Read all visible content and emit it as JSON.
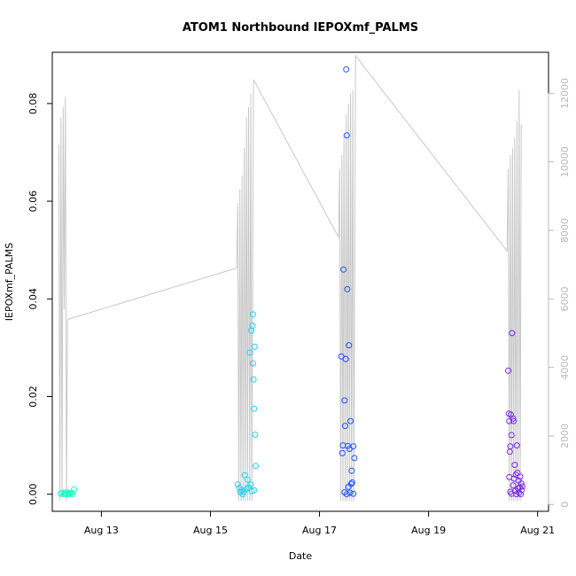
{
  "chart_data": {
    "type": "scatter",
    "title": "ATOM1 Northbound IEPOXmf_PALMS",
    "xlabel": "Date",
    "ylabel": "IEPOXmf_PALMS",
    "x_ticks": [
      "Aug 13",
      "Aug 15",
      "Aug 17",
      "Aug 19",
      "Aug 21"
    ],
    "x_tick_values": [
      13,
      15,
      17,
      19,
      21
    ],
    "y_ticks": [
      "0.00",
      "0.02",
      "0.04",
      "0.06",
      "0.08"
    ],
    "y_tick_values": [
      0,
      0.02,
      0.04,
      0.06,
      0.08
    ],
    "y2_ticks": [
      "0",
      "2000",
      "4000",
      "6000",
      "8000",
      "10000",
      "12000"
    ],
    "y2_tick_values": [
      0,
      2000,
      4000,
      6000,
      8000,
      10000,
      12000
    ],
    "xlim": [
      12.1,
      21.2
    ],
    "ylim": [
      -0.0035,
      0.0905
    ],
    "y2lim": [
      -200,
      13200
    ],
    "colors": {
      "axis": "#000000",
      "secondary_axis": "#b8b8b8",
      "altitude_line": "#c8c8c8"
    },
    "series": [
      {
        "role": "points",
        "values": [
          {
            "x": 12.25,
            "y": 0.0001,
            "color": "#19ffc8"
          },
          {
            "x": 12.28,
            "y": 0.0003,
            "color": "#19ffc8"
          },
          {
            "x": 12.31,
            "y": 0.0,
            "color": "#19ffc8"
          },
          {
            "x": 12.33,
            "y": 0.0002,
            "color": "#19ffc8"
          },
          {
            "x": 12.35,
            "y": 0.0001,
            "color": "#19ffc8"
          },
          {
            "x": 12.37,
            "y": 0.0004,
            "color": "#19ffc8"
          },
          {
            "x": 12.39,
            "y": 0.0,
            "color": "#19ffc8"
          },
          {
            "x": 12.41,
            "y": 0.0002,
            "color": "#19ffc8"
          },
          {
            "x": 12.43,
            "y": 0.0001,
            "color": "#19ffc8"
          },
          {
            "x": 12.45,
            "y": 0.0003,
            "color": "#19ffc8"
          },
          {
            "x": 12.47,
            "y": 0.0,
            "color": "#19ffc8"
          },
          {
            "x": 12.5,
            "y": 0.001,
            "color": "#19ffc8"
          },
          {
            "x": 15.5,
            "y": 0.002,
            "color": "#22d0f0"
          },
          {
            "x": 15.53,
            "y": 0.0013,
            "color": "#22d0f0"
          },
          {
            "x": 15.55,
            "y": 0.0004,
            "color": "#22d0f0"
          },
          {
            "x": 15.57,
            "y": 0.0008,
            "color": "#22d0f0"
          },
          {
            "x": 15.59,
            "y": 0.0,
            "color": "#22d0f0"
          },
          {
            "x": 15.61,
            "y": 0.0005,
            "color": "#22d0f0"
          },
          {
            "x": 15.63,
            "y": 0.0039,
            "color": "#22d0f0"
          },
          {
            "x": 15.66,
            "y": 0.0011,
            "color": "#22d0f0"
          },
          {
            "x": 15.68,
            "y": 0.003,
            "color": "#22d0f0"
          },
          {
            "x": 15.7,
            "y": 0.0014,
            "color": "#22d0f0"
          },
          {
            "x": 15.72,
            "y": 0.029,
            "color": "#22d0f0"
          },
          {
            "x": 15.74,
            "y": 0.002,
            "color": "#22d0f0"
          },
          {
            "x": 15.75,
            "y": 0.0335,
            "color": "#22d0f0"
          },
          {
            "x": 15.77,
            "y": 0.0345,
            "color": "#22d0f0"
          },
          {
            "x": 15.78,
            "y": 0.0368,
            "color": "#22d0f0"
          },
          {
            "x": 15.78,
            "y": 0.0268,
            "color": "#22d0f0"
          },
          {
            "x": 15.79,
            "y": 0.0235,
            "color": "#22d0f0"
          },
          {
            "x": 15.8,
            "y": 0.0175,
            "color": "#22d0f0"
          },
          {
            "x": 15.81,
            "y": 0.0302,
            "color": "#22d0f0"
          },
          {
            "x": 15.82,
            "y": 0.0122,
            "color": "#22d0f0"
          },
          {
            "x": 15.83,
            "y": 0.0058,
            "color": "#22d0f0"
          },
          {
            "x": 15.8,
            "y": 0.0008,
            "color": "#22d0f0"
          },
          {
            "x": 15.76,
            "y": 0.0006,
            "color": "#22d0f0"
          },
          {
            "x": 17.4,
            "y": 0.0282,
            "color": "#1e50ff"
          },
          {
            "x": 17.42,
            "y": 0.0084,
            "color": "#1e50ff"
          },
          {
            "x": 17.43,
            "y": 0.01,
            "color": "#1e50ff"
          },
          {
            "x": 17.44,
            "y": 0.046,
            "color": "#1e50ff"
          },
          {
            "x": 17.46,
            "y": 0.0192,
            "color": "#1e50ff"
          },
          {
            "x": 17.47,
            "y": 0.014,
            "color": "#1e50ff"
          },
          {
            "x": 17.48,
            "y": 0.0277,
            "color": "#1e50ff"
          },
          {
            "x": 17.49,
            "y": 0.087,
            "color": "#1e50ff"
          },
          {
            "x": 17.5,
            "y": 0.0735,
            "color": "#1e50ff"
          },
          {
            "x": 17.51,
            "y": 0.042,
            "color": "#1e50ff"
          },
          {
            "x": 17.52,
            "y": 0.0099,
            "color": "#1e50ff"
          },
          {
            "x": 17.54,
            "y": 0.0305,
            "color": "#1e50ff"
          },
          {
            "x": 17.55,
            "y": 0.0093,
            "color": "#1e50ff"
          },
          {
            "x": 17.57,
            "y": 0.015,
            "color": "#1e50ff"
          },
          {
            "x": 17.59,
            "y": 0.0048,
            "color": "#1e50ff"
          },
          {
            "x": 17.62,
            "y": 0.0098,
            "color": "#1e50ff"
          },
          {
            "x": 17.64,
            "y": 0.0074,
            "color": "#1e50ff"
          },
          {
            "x": 17.46,
            "y": 0.0004,
            "color": "#1e50ff"
          },
          {
            "x": 17.5,
            "y": 0.0,
            "color": "#1e50ff"
          },
          {
            "x": 17.53,
            "y": 0.0015,
            "color": "#1e50ff"
          },
          {
            "x": 17.56,
            "y": 0.0003,
            "color": "#1e50ff"
          },
          {
            "x": 17.58,
            "y": 0.0021,
            "color": "#1e50ff"
          },
          {
            "x": 17.6,
            "y": 0.0024,
            "color": "#1e50ff"
          },
          {
            "x": 17.62,
            "y": 0.0001,
            "color": "#1e50ff"
          },
          {
            "x": 20.46,
            "y": 0.0253,
            "color": "#7828e6"
          },
          {
            "x": 20.47,
            "y": 0.0165,
            "color": "#7828e6"
          },
          {
            "x": 20.48,
            "y": 0.015,
            "color": "#7828e6"
          },
          {
            "x": 20.49,
            "y": 0.0087,
            "color": "#7828e6"
          },
          {
            "x": 20.5,
            "y": 0.0098,
            "color": "#7828e6"
          },
          {
            "x": 20.51,
            "y": 0.0163,
            "color": "#7828e6"
          },
          {
            "x": 20.52,
            "y": 0.0121,
            "color": "#7828e6"
          },
          {
            "x": 20.53,
            "y": 0.033,
            "color": "#7828e6"
          },
          {
            "x": 20.55,
            "y": 0.0155,
            "color": "#7828e6"
          },
          {
            "x": 20.56,
            "y": 0.015,
            "color": "#7828e6"
          },
          {
            "x": 20.58,
            "y": 0.006,
            "color": "#7828e6"
          },
          {
            "x": 20.6,
            "y": 0.004,
            "color": "#7828e6"
          },
          {
            "x": 20.62,
            "y": 0.01,
            "color": "#7828e6"
          },
          {
            "x": 20.65,
            "y": 0.0028,
            "color": "#7828e6"
          },
          {
            "x": 20.68,
            "y": 0.0036,
            "color": "#7828e6"
          },
          {
            "x": 20.7,
            "y": 0.0022,
            "color": "#7828e6"
          },
          {
            "x": 20.48,
            "y": 0.0035,
            "color": "#7828e6"
          },
          {
            "x": 20.5,
            "y": 0.0005,
            "color": "#7828e6"
          },
          {
            "x": 20.52,
            "y": 0.0001,
            "color": "#7828e6"
          },
          {
            "x": 20.55,
            "y": 0.0018,
            "color": "#7828e6"
          },
          {
            "x": 20.57,
            "y": 0.0032,
            "color": "#7828e6"
          },
          {
            "x": 20.59,
            "y": 0.0007,
            "color": "#7828e6"
          },
          {
            "x": 20.61,
            "y": 0.0,
            "color": "#7828e6"
          },
          {
            "x": 20.63,
            "y": 0.0044,
            "color": "#7828e6"
          },
          {
            "x": 20.64,
            "y": 0.0012,
            "color": "#7828e6"
          },
          {
            "x": 20.66,
            "y": 0.0003,
            "color": "#7828e6"
          },
          {
            "x": 20.67,
            "y": 0.0014,
            "color": "#7828e6"
          },
          {
            "x": 20.69,
            "y": 0.0,
            "color": "#7828e6"
          },
          {
            "x": 20.71,
            "y": 0.0009,
            "color": "#7828e6"
          },
          {
            "x": 20.72,
            "y": 0.0016,
            "color": "#7828e6"
          }
        ]
      },
      {
        "role": "line_secondary_axis",
        "values": [
          {
            "x": 12.22,
            "y": 10500
          },
          {
            "x": 12.24,
            "y": 100
          },
          {
            "x": 12.26,
            "y": 11300
          },
          {
            "x": 12.28,
            "y": 200
          },
          {
            "x": 12.3,
            "y": 11600
          },
          {
            "x": 12.32,
            "y": 5700
          },
          {
            "x": 12.34,
            "y": 11900
          },
          {
            "x": 12.36,
            "y": 100
          },
          {
            "x": 12.38,
            "y": 5400
          },
          {
            "x": 15.48,
            "y": 6900
          },
          {
            "x": 15.5,
            "y": 8800
          },
          {
            "x": 15.52,
            "y": 100
          },
          {
            "x": 15.54,
            "y": 9200
          },
          {
            "x": 15.56,
            "y": 100
          },
          {
            "x": 15.58,
            "y": 9600
          },
          {
            "x": 15.6,
            "y": 100
          },
          {
            "x": 15.62,
            "y": 10400
          },
          {
            "x": 15.64,
            "y": 100
          },
          {
            "x": 15.66,
            "y": 11300
          },
          {
            "x": 15.68,
            "y": 100
          },
          {
            "x": 15.7,
            "y": 11600
          },
          {
            "x": 15.72,
            "y": 100
          },
          {
            "x": 15.74,
            "y": 12000
          },
          {
            "x": 15.76,
            "y": 100
          },
          {
            "x": 15.79,
            "y": 12400
          },
          {
            "x": 17.35,
            "y": 7800
          },
          {
            "x": 17.37,
            "y": 9800
          },
          {
            "x": 17.39,
            "y": 100
          },
          {
            "x": 17.41,
            "y": 10200
          },
          {
            "x": 17.43,
            "y": 100
          },
          {
            "x": 17.45,
            "y": 10800
          },
          {
            "x": 17.47,
            "y": 100
          },
          {
            "x": 17.49,
            "y": 11400
          },
          {
            "x": 17.51,
            "y": 100
          },
          {
            "x": 17.53,
            "y": 11700
          },
          {
            "x": 17.55,
            "y": 100
          },
          {
            "x": 17.57,
            "y": 12000
          },
          {
            "x": 17.59,
            "y": 100
          },
          {
            "x": 17.61,
            "y": 12100
          },
          {
            "x": 17.63,
            "y": 100
          },
          {
            "x": 17.66,
            "y": 13100
          },
          {
            "x": 20.44,
            "y": 7400
          },
          {
            "x": 20.46,
            "y": 9800
          },
          {
            "x": 20.48,
            "y": 100
          },
          {
            "x": 20.5,
            "y": 10200
          },
          {
            "x": 20.52,
            "y": 100
          },
          {
            "x": 20.54,
            "y": 10400
          },
          {
            "x": 20.56,
            "y": 100
          },
          {
            "x": 20.58,
            "y": 10700
          },
          {
            "x": 20.6,
            "y": 100
          },
          {
            "x": 20.62,
            "y": 11200
          },
          {
            "x": 20.64,
            "y": 100
          },
          {
            "x": 20.66,
            "y": 12100
          },
          {
            "x": 20.68,
            "y": 100
          },
          {
            "x": 20.7,
            "y": 11100
          }
        ]
      }
    ]
  }
}
